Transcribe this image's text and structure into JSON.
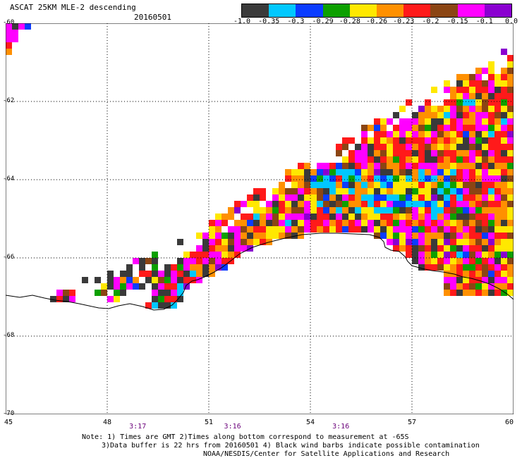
{
  "header": {
    "title": "ASCAT 25KM MLE-2 descending",
    "date": "20160501"
  },
  "colorbar": {
    "colors": [
      "#3a3a3a",
      "#00c8ff",
      "#0a3cff",
      "#0ca000",
      "#ffe800",
      "#ff9000",
      "#ff1a1a",
      "#8b4513",
      "#ff00ff",
      "#8a00d0"
    ],
    "tick_labels": [
      "-1.0",
      "-0.35",
      "-0.3",
      "-0.29",
      "-0.28",
      "-0.26",
      "-0.23",
      "-0.2",
      "-0.15",
      "-0.1",
      "0.0"
    ]
  },
  "map": {
    "lat_labels": [
      "-60",
      "-62",
      "-64",
      "-66",
      "-68",
      "-70"
    ],
    "lon_labels": [
      "45",
      "48",
      "51",
      "54",
      "57",
      "60"
    ],
    "lon_range": [
      45,
      60
    ],
    "lat_range": [
      -60,
      -70
    ],
    "pass_times": [
      {
        "label": "3:17",
        "lon": 48.9
      },
      {
        "label": "3:16",
        "lon": 51.7
      },
      {
        "label": "3:16",
        "lon": 54.9
      }
    ]
  },
  "footer": {
    "note_line1": "Note: 1) Times are GMT 2)Times along bottom correspond to measurement at -65S",
    "note_line2": "3)Data buffer is 22 hrs from 20160501 4) Black wind barbs indicate possible contamination",
    "credit": "NOAA/NESDIS/Center for Satellite Applications and Research"
  }
}
